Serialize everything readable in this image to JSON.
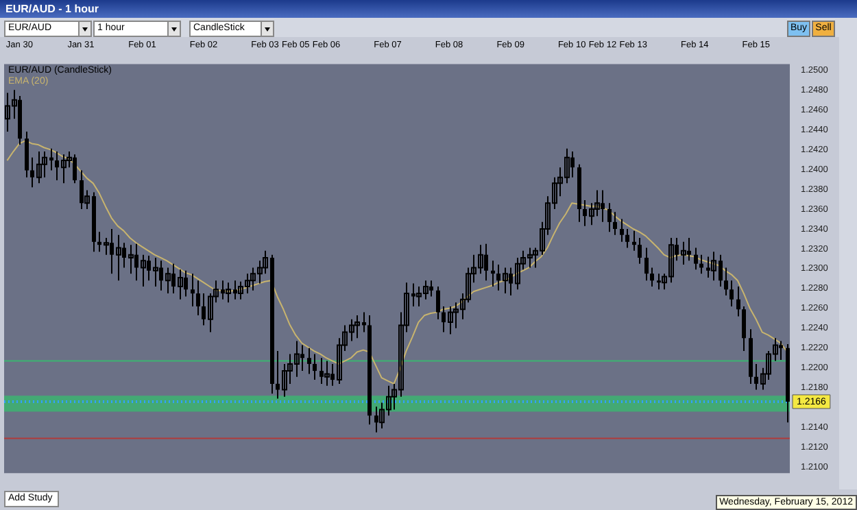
{
  "chart_data": {
    "type": "candlestick",
    "title": "EUR/AUD - 1 hour",
    "categories": [
      null,
      null,
      "Jan 30",
      null,
      null,
      null,
      null,
      null,
      null,
      null,
      null,
      null,
      "Jan 31",
      null,
      null,
      null,
      null,
      null,
      null,
      null,
      null,
      null,
      "Feb 01",
      null,
      null,
      null,
      null,
      null,
      null,
      null,
      null,
      null,
      "Feb 02",
      null,
      null,
      null,
      null,
      null,
      null,
      null,
      null,
      null,
      "Feb 03",
      null,
      null,
      null,
      null,
      "Feb 05",
      null,
      null,
      null,
      null,
      "Feb 06",
      null,
      null,
      null,
      null,
      null,
      null,
      null,
      null,
      null,
      "Feb 07",
      null,
      null,
      null,
      null,
      null,
      null,
      null,
      null,
      null,
      "Feb 08",
      null,
      null,
      null,
      null,
      null,
      null,
      null,
      null,
      null,
      "Feb 09",
      null,
      null,
      null,
      null,
      null,
      null,
      null,
      null,
      null,
      "Feb 10",
      null,
      null,
      null,
      null,
      "Feb 12",
      null,
      null,
      null,
      null,
      "Feb 13",
      null,
      null,
      null,
      null,
      null,
      null,
      null,
      null,
      null,
      "Feb 14",
      null,
      null,
      null,
      null,
      null,
      null,
      null,
      null,
      null,
      "Feb 15",
      null,
      null,
      null,
      null,
      null
    ],
    "series": [
      {
        "name": "EUR/AUD (CandleStick)",
        "color": "#000000",
        "ohlc": [
          [
            1.2451,
            1.2477,
            1.2438,
            1.2464
          ],
          [
            1.2464,
            1.248,
            1.2451,
            1.247
          ],
          [
            1.247,
            1.2474,
            1.2425,
            1.2431
          ],
          [
            1.2431,
            1.2438,
            1.2392,
            1.2399
          ],
          [
            1.2399,
            1.2412,
            1.2382,
            1.2392
          ],
          [
            1.2392,
            1.2418,
            1.2386,
            1.2405
          ],
          [
            1.2405,
            1.2418,
            1.2392,
            1.2412
          ],
          [
            1.2412,
            1.2421,
            1.2399,
            1.2409
          ],
          [
            1.2409,
            1.2418,
            1.2389,
            1.2402
          ],
          [
            1.2402,
            1.2415,
            1.2386,
            1.2409
          ],
          [
            1.2409,
            1.2418,
            1.2402,
            1.2412
          ],
          [
            1.2412,
            1.2415,
            1.2386,
            1.2389
          ],
          [
            1.2389,
            1.2399,
            1.236,
            1.2366
          ],
          [
            1.2366,
            1.2379,
            1.236,
            1.2373
          ],
          [
            1.2373,
            1.2377,
            1.2317,
            1.2327
          ],
          [
            1.2327,
            1.2337,
            1.2317,
            1.2324
          ],
          [
            1.2324,
            1.2331,
            1.2314,
            1.2326
          ],
          [
            1.2326,
            1.234,
            1.2295,
            1.2314
          ],
          [
            1.2314,
            1.2334,
            1.2288,
            1.2321
          ],
          [
            1.2321,
            1.2326,
            1.2301,
            1.2311
          ],
          [
            1.2311,
            1.2324,
            1.2295,
            1.2314
          ],
          [
            1.2314,
            1.2325,
            1.2288,
            1.2301
          ],
          [
            1.2301,
            1.2314,
            1.2282,
            1.2308
          ],
          [
            1.2308,
            1.2313,
            1.2288,
            1.2298
          ],
          [
            1.2298,
            1.2311,
            1.2282,
            1.2301
          ],
          [
            1.2301,
            1.2308,
            1.2278,
            1.2288
          ],
          [
            1.2288,
            1.2301,
            1.2275,
            1.2295
          ],
          [
            1.2295,
            1.2305,
            1.2275,
            1.2282
          ],
          [
            1.2282,
            1.2299,
            1.2269,
            1.2291
          ],
          [
            1.2291,
            1.2298,
            1.2272,
            1.2279
          ],
          [
            1.2279,
            1.2295,
            1.2262,
            1.2275
          ],
          [
            1.2275,
            1.2288,
            1.2253,
            1.2262
          ],
          [
            1.2262,
            1.2275,
            1.2243,
            1.2249
          ],
          [
            1.2249,
            1.2275,
            1.2236,
            1.2272
          ],
          [
            1.2272,
            1.2288,
            1.2266,
            1.2279
          ],
          [
            1.2279,
            1.2288,
            1.2269,
            1.2275
          ],
          [
            1.2275,
            1.2286,
            1.2266,
            1.2279
          ],
          [
            1.2279,
            1.2288,
            1.2269,
            1.2275
          ],
          [
            1.2275,
            1.2287,
            1.2269,
            1.2282
          ],
          [
            1.2282,
            1.2295,
            1.2275,
            1.2288
          ],
          [
            1.2288,
            1.2301,
            1.2278,
            1.2295
          ],
          [
            1.2295,
            1.2308,
            1.2285,
            1.2301
          ],
          [
            1.2301,
            1.2318,
            1.2295,
            1.2311
          ],
          [
            1.2311,
            1.2314,
            1.2174,
            1.2184
          ],
          [
            1.2184,
            1.2217,
            1.2169,
            1.2178
          ],
          [
            1.2178,
            1.2204,
            1.2171,
            1.2197
          ],
          [
            1.2197,
            1.2214,
            1.2184,
            1.2204
          ],
          [
            1.2204,
            1.2227,
            1.2191,
            1.2214
          ],
          [
            1.2214,
            1.2223,
            1.2197,
            1.221
          ],
          [
            1.221,
            1.222,
            1.2194,
            1.2204
          ],
          [
            1.2204,
            1.2214,
            1.2188,
            1.2197
          ],
          [
            1.2197,
            1.221,
            1.2184,
            1.2191
          ],
          [
            1.2191,
            1.2207,
            1.2182,
            1.2194
          ],
          [
            1.2194,
            1.2204,
            1.2182,
            1.2188
          ],
          [
            1.2188,
            1.223,
            1.2184,
            1.2223
          ],
          [
            1.2223,
            1.2243,
            1.2217,
            1.2236
          ],
          [
            1.2236,
            1.2249,
            1.2227,
            1.2243
          ],
          [
            1.2243,
            1.2253,
            1.223,
            1.2246
          ],
          [
            1.2246,
            1.2256,
            1.2236,
            1.2243
          ],
          [
            1.2243,
            1.2253,
            1.2143,
            1.2152
          ],
          [
            1.2152,
            1.2161,
            1.2135,
            1.2145
          ],
          [
            1.2145,
            1.2165,
            1.2139,
            1.2158
          ],
          [
            1.2158,
            1.2182,
            1.2152,
            1.2171
          ],
          [
            1.2171,
            1.2184,
            1.2158,
            1.2178
          ],
          [
            1.2178,
            1.2256,
            1.2171,
            1.2243
          ],
          [
            1.2243,
            1.2286,
            1.2236,
            1.2275
          ],
          [
            1.2275,
            1.2285,
            1.2262,
            1.2272
          ],
          [
            1.2272,
            1.2282,
            1.2262,
            1.2275
          ],
          [
            1.2275,
            1.2288,
            1.2269,
            1.2282
          ],
          [
            1.2282,
            1.2288,
            1.2272,
            1.2278
          ],
          [
            1.2278,
            1.2282,
            1.2249,
            1.2256
          ],
          [
            1.2256,
            1.2262,
            1.2236,
            1.2246
          ],
          [
            1.2246,
            1.2262,
            1.2234,
            1.2256
          ],
          [
            1.2256,
            1.2266,
            1.224,
            1.2259
          ],
          [
            1.2259,
            1.2275,
            1.2249,
            1.2269
          ],
          [
            1.2269,
            1.2301,
            1.2266,
            1.2295
          ],
          [
            1.2295,
            1.2314,
            1.2286,
            1.2301
          ],
          [
            1.2301,
            1.2324,
            1.2295,
            1.2314
          ],
          [
            1.2314,
            1.2325,
            1.2288,
            1.2298
          ],
          [
            1.2298,
            1.2308,
            1.2282,
            1.2295
          ],
          [
            1.2295,
            1.2304,
            1.2278,
            1.2288
          ],
          [
            1.2288,
            1.2301,
            1.2275,
            1.2295
          ],
          [
            1.2295,
            1.2301,
            1.2273,
            1.2285
          ],
          [
            1.2285,
            1.2311,
            1.2279,
            1.2305
          ],
          [
            1.2305,
            1.2318,
            1.2299,
            1.2311
          ],
          [
            1.2311,
            1.2321,
            1.2301,
            1.2314
          ],
          [
            1.2314,
            1.2321,
            1.2301,
            1.2318
          ],
          [
            1.2318,
            1.2347,
            1.2314,
            1.234
          ],
          [
            1.234,
            1.2373,
            1.2334,
            1.2366
          ],
          [
            1.2366,
            1.2392,
            1.236,
            1.2386
          ],
          [
            1.2386,
            1.2402,
            1.2373,
            1.2392
          ],
          [
            1.2392,
            1.2421,
            1.2386,
            1.2412
          ],
          [
            1.2412,
            1.2418,
            1.2392,
            1.2402
          ],
          [
            1.2402,
            1.2405,
            1.2347,
            1.236
          ],
          [
            1.236,
            1.2369,
            1.2343,
            1.2353
          ],
          [
            1.2353,
            1.2366,
            1.2344,
            1.236
          ],
          [
            1.236,
            1.2379,
            1.2353,
            1.2366
          ],
          [
            1.2366,
            1.2379,
            1.2347,
            1.236
          ],
          [
            1.236,
            1.2366,
            1.2337,
            1.2347
          ],
          [
            1.2347,
            1.2357,
            1.2334,
            1.234
          ],
          [
            1.234,
            1.235,
            1.2327,
            1.2334
          ],
          [
            1.2334,
            1.234,
            1.2321,
            1.2327
          ],
          [
            1.2327,
            1.2338,
            1.2318,
            1.2324
          ],
          [
            1.2324,
            1.2331,
            1.2305,
            1.2311
          ],
          [
            1.2311,
            1.2321,
            1.2288,
            1.2295
          ],
          [
            1.2295,
            1.2301,
            1.2282,
            1.2288
          ],
          [
            1.2288,
            1.2295,
            1.2279,
            1.2286
          ],
          [
            1.2286,
            1.2295,
            1.2279,
            1.2292
          ],
          [
            1.2292,
            1.2331,
            1.2286,
            1.2324
          ],
          [
            1.2324,
            1.2331,
            1.2308,
            1.2314
          ],
          [
            1.2314,
            1.2327,
            1.2304,
            1.2318
          ],
          [
            1.2318,
            1.2331,
            1.2308,
            1.2314
          ],
          [
            1.2314,
            1.2321,
            1.2299,
            1.2305
          ],
          [
            1.2305,
            1.2314,
            1.2295,
            1.2301
          ],
          [
            1.2301,
            1.2312,
            1.2291,
            1.2298
          ],
          [
            1.2298,
            1.2317,
            1.2288,
            1.2308
          ],
          [
            1.2308,
            1.2314,
            1.2282,
            1.2288
          ],
          [
            1.2288,
            1.2301,
            1.2273,
            1.2279
          ],
          [
            1.2279,
            1.2288,
            1.2262,
            1.2269
          ],
          [
            1.2269,
            1.2282,
            1.2252,
            1.2259
          ],
          [
            1.2259,
            1.2262,
            1.2217,
            1.223
          ],
          [
            1.223,
            1.2239,
            1.2184,
            1.2191
          ],
          [
            1.2191,
            1.2204,
            1.2178,
            1.2184
          ],
          [
            1.2184,
            1.22,
            1.2178,
            1.2194
          ],
          [
            1.2194,
            1.2217,
            1.2188,
            1.2214
          ],
          [
            1.2214,
            1.223,
            1.2207,
            1.2223
          ],
          [
            1.2223,
            1.2227,
            1.2208,
            1.222
          ],
          [
            1.222,
            1.2224,
            1.2145,
            1.2166
          ]
        ]
      },
      {
        "name": "EMA (20)",
        "type": "line",
        "color": "#c8b46e",
        "values": [
          1.2409,
          1.2418,
          1.2426,
          1.2429,
          1.2426,
          1.2425,
          1.2422,
          1.242,
          1.2417,
          1.2413,
          1.2411,
          1.2405,
          1.2398,
          1.2391,
          1.2386,
          1.2376,
          1.2363,
          1.2351,
          1.2343,
          1.2338,
          1.2331,
          1.2326,
          1.2322,
          1.2318,
          1.2314,
          1.2311,
          1.2308,
          1.2304,
          1.23,
          1.2296,
          1.2294,
          1.229,
          1.2286,
          1.2282,
          1.2278,
          1.2278,
          1.2277,
          1.2278,
          1.2279,
          1.2281,
          1.2283,
          1.2285,
          1.2287,
          1.2288,
          1.2272,
          1.2259,
          1.2244,
          1.2233,
          1.2225,
          1.2221,
          1.2217,
          1.2214,
          1.221,
          1.2207,
          1.2204,
          1.2207,
          1.221,
          1.2216,
          1.2218,
          1.2216,
          1.2203,
          1.219,
          1.2187,
          1.2184,
          1.2199,
          1.2217,
          1.2231,
          1.2246,
          1.2253,
          1.2255,
          1.2256,
          1.2259,
          1.226,
          1.2262,
          1.2266,
          1.2272,
          1.2277,
          1.2279,
          1.2281,
          1.2283,
          1.2286,
          1.2288,
          1.2291,
          1.2295,
          1.2298,
          1.2301,
          1.2307,
          1.2312,
          1.2321,
          1.2334,
          1.2346,
          1.2355,
          1.2366,
          1.2365,
          1.2364,
          1.2363,
          1.2363,
          1.2361,
          1.2359,
          1.2353,
          1.2348,
          1.2344,
          1.234,
          1.2337,
          1.2333,
          1.2327,
          1.2321,
          1.2314,
          1.2311,
          1.2313,
          1.2314,
          1.2313,
          1.2312,
          1.2309,
          1.2307,
          1.2305,
          1.2303,
          1.2298,
          1.2294,
          1.2288,
          1.2275,
          1.226,
          1.2249,
          1.2236,
          1.2233,
          1.2229,
          1.2225,
          1.2217
        ]
      }
    ],
    "ylim": [
      1.2094,
      1.2506
    ],
    "yticks": [
      {
        "value": 1.21,
        "label": "1.2100"
      },
      {
        "value": 1.212,
        "label": "1.2120"
      },
      {
        "value": 1.214,
        "label": "1.2140"
      },
      {
        "value": 1.218,
        "label": "1.2180"
      },
      {
        "value": 1.22,
        "label": "1.2200"
      },
      {
        "value": 1.222,
        "label": "1.2220"
      },
      {
        "value": 1.224,
        "label": "1.2240"
      },
      {
        "value": 1.226,
        "label": "1.2260"
      },
      {
        "value": 1.228,
        "label": "1.2280"
      },
      {
        "value": 1.23,
        "label": "1.2300"
      },
      {
        "value": 1.232,
        "label": "1.2320"
      },
      {
        "value": 1.234,
        "label": "1.2340"
      },
      {
        "value": 1.236,
        "label": "1.2360"
      },
      {
        "value": 1.238,
        "label": "1.2380"
      },
      {
        "value": 1.24,
        "label": "1.2400"
      },
      {
        "value": 1.242,
        "label": "1.2420"
      },
      {
        "value": 1.244,
        "label": "1.2440"
      },
      {
        "value": 1.246,
        "label": "1.2460"
      },
      {
        "value": 1.248,
        "label": "1.2480"
      },
      {
        "value": 1.25,
        "label": "1.2500"
      }
    ],
    "ref_lines": [
      {
        "axis": "y",
        "value": 1.2207,
        "color": "#3cb371"
      },
      {
        "axis": "y",
        "value": 1.2166,
        "label": "1.2166",
        "color": "#33a0ff",
        "line_style": "dotted"
      },
      {
        "axis": "y",
        "value": 1.2129,
        "color": "#b03a3a"
      }
    ],
    "bands": [
      {
        "axis": "y",
        "from": 1.2156,
        "to": 1.2172,
        "color": "#3cb371"
      }
    ],
    "legend": "top left",
    "marker": "none",
    "annotations": [
      "EUR/AUD",
      "1 hour",
      "CandleStick",
      "Buy",
      "Sell",
      "Add Study",
      "Wednesday, February 15, 2012"
    ]
  }
}
